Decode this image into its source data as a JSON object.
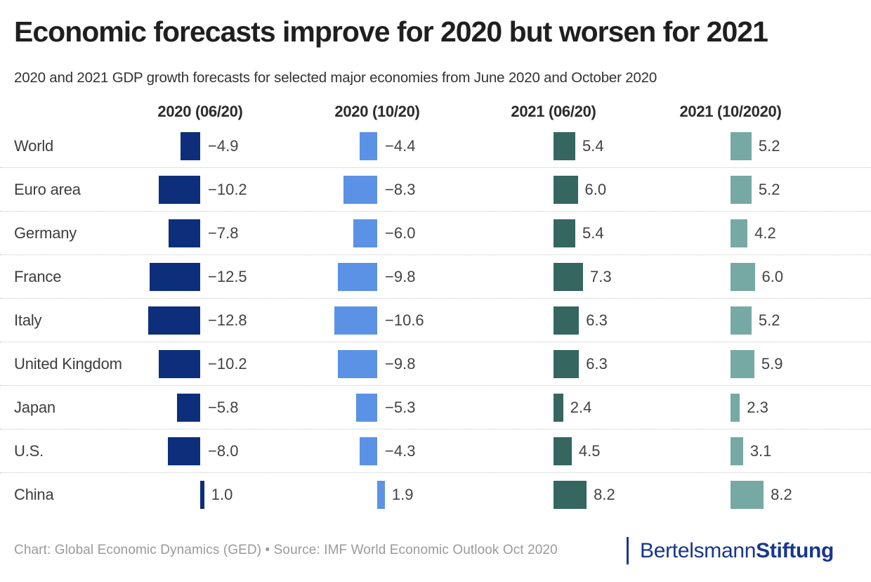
{
  "header": {
    "title": "Economic forecasts improve for 2020 but worsen for 2021",
    "subtitle": "2020 and 2021 GDP growth forecasts for selected major economies from June 2020 and October 2020"
  },
  "chart_data": {
    "type": "bar",
    "orientation": "horizontal",
    "columns": [
      {
        "label": "2020 (06/20)",
        "color": "#0d2e7b"
      },
      {
        "label": "2020 (10/20)",
        "color": "#5b92e6"
      },
      {
        "label": "2021 (06/20)",
        "color": "#35665f"
      },
      {
        "label": "2021 (10/2020)",
        "color": "#77a9a4"
      }
    ],
    "rows": [
      {
        "label": "World",
        "values": [
          -4.9,
          -4.4,
          5.4,
          5.2
        ]
      },
      {
        "label": "Euro area",
        "values": [
          -10.2,
          -8.3,
          6.0,
          5.2
        ]
      },
      {
        "label": "Germany",
        "values": [
          -7.8,
          -6.0,
          5.4,
          4.2
        ]
      },
      {
        "label": "France",
        "values": [
          -12.5,
          -9.8,
          7.3,
          6.0
        ]
      },
      {
        "label": "Italy",
        "values": [
          -12.8,
          -10.6,
          6.3,
          5.2
        ]
      },
      {
        "label": "United Kingdom",
        "values": [
          -10.2,
          -9.8,
          6.3,
          5.9
        ]
      },
      {
        "label": "Japan",
        "values": [
          -5.8,
          -5.3,
          2.4,
          2.3
        ]
      },
      {
        "label": "U.S.",
        "values": [
          -8.0,
          -4.3,
          4.5,
          3.1
        ]
      },
      {
        "label": "China",
        "values": [
          1.0,
          1.9,
          8.2,
          8.2
        ]
      }
    ]
  },
  "footer": {
    "credit": "Chart: Global Economic Dynamics (GED) • Source: IMF World Economic Outlook Oct 2020",
    "logo": {
      "part1": "Bertelsmann",
      "part2": "Stiftung",
      "color": "#17368c"
    }
  }
}
